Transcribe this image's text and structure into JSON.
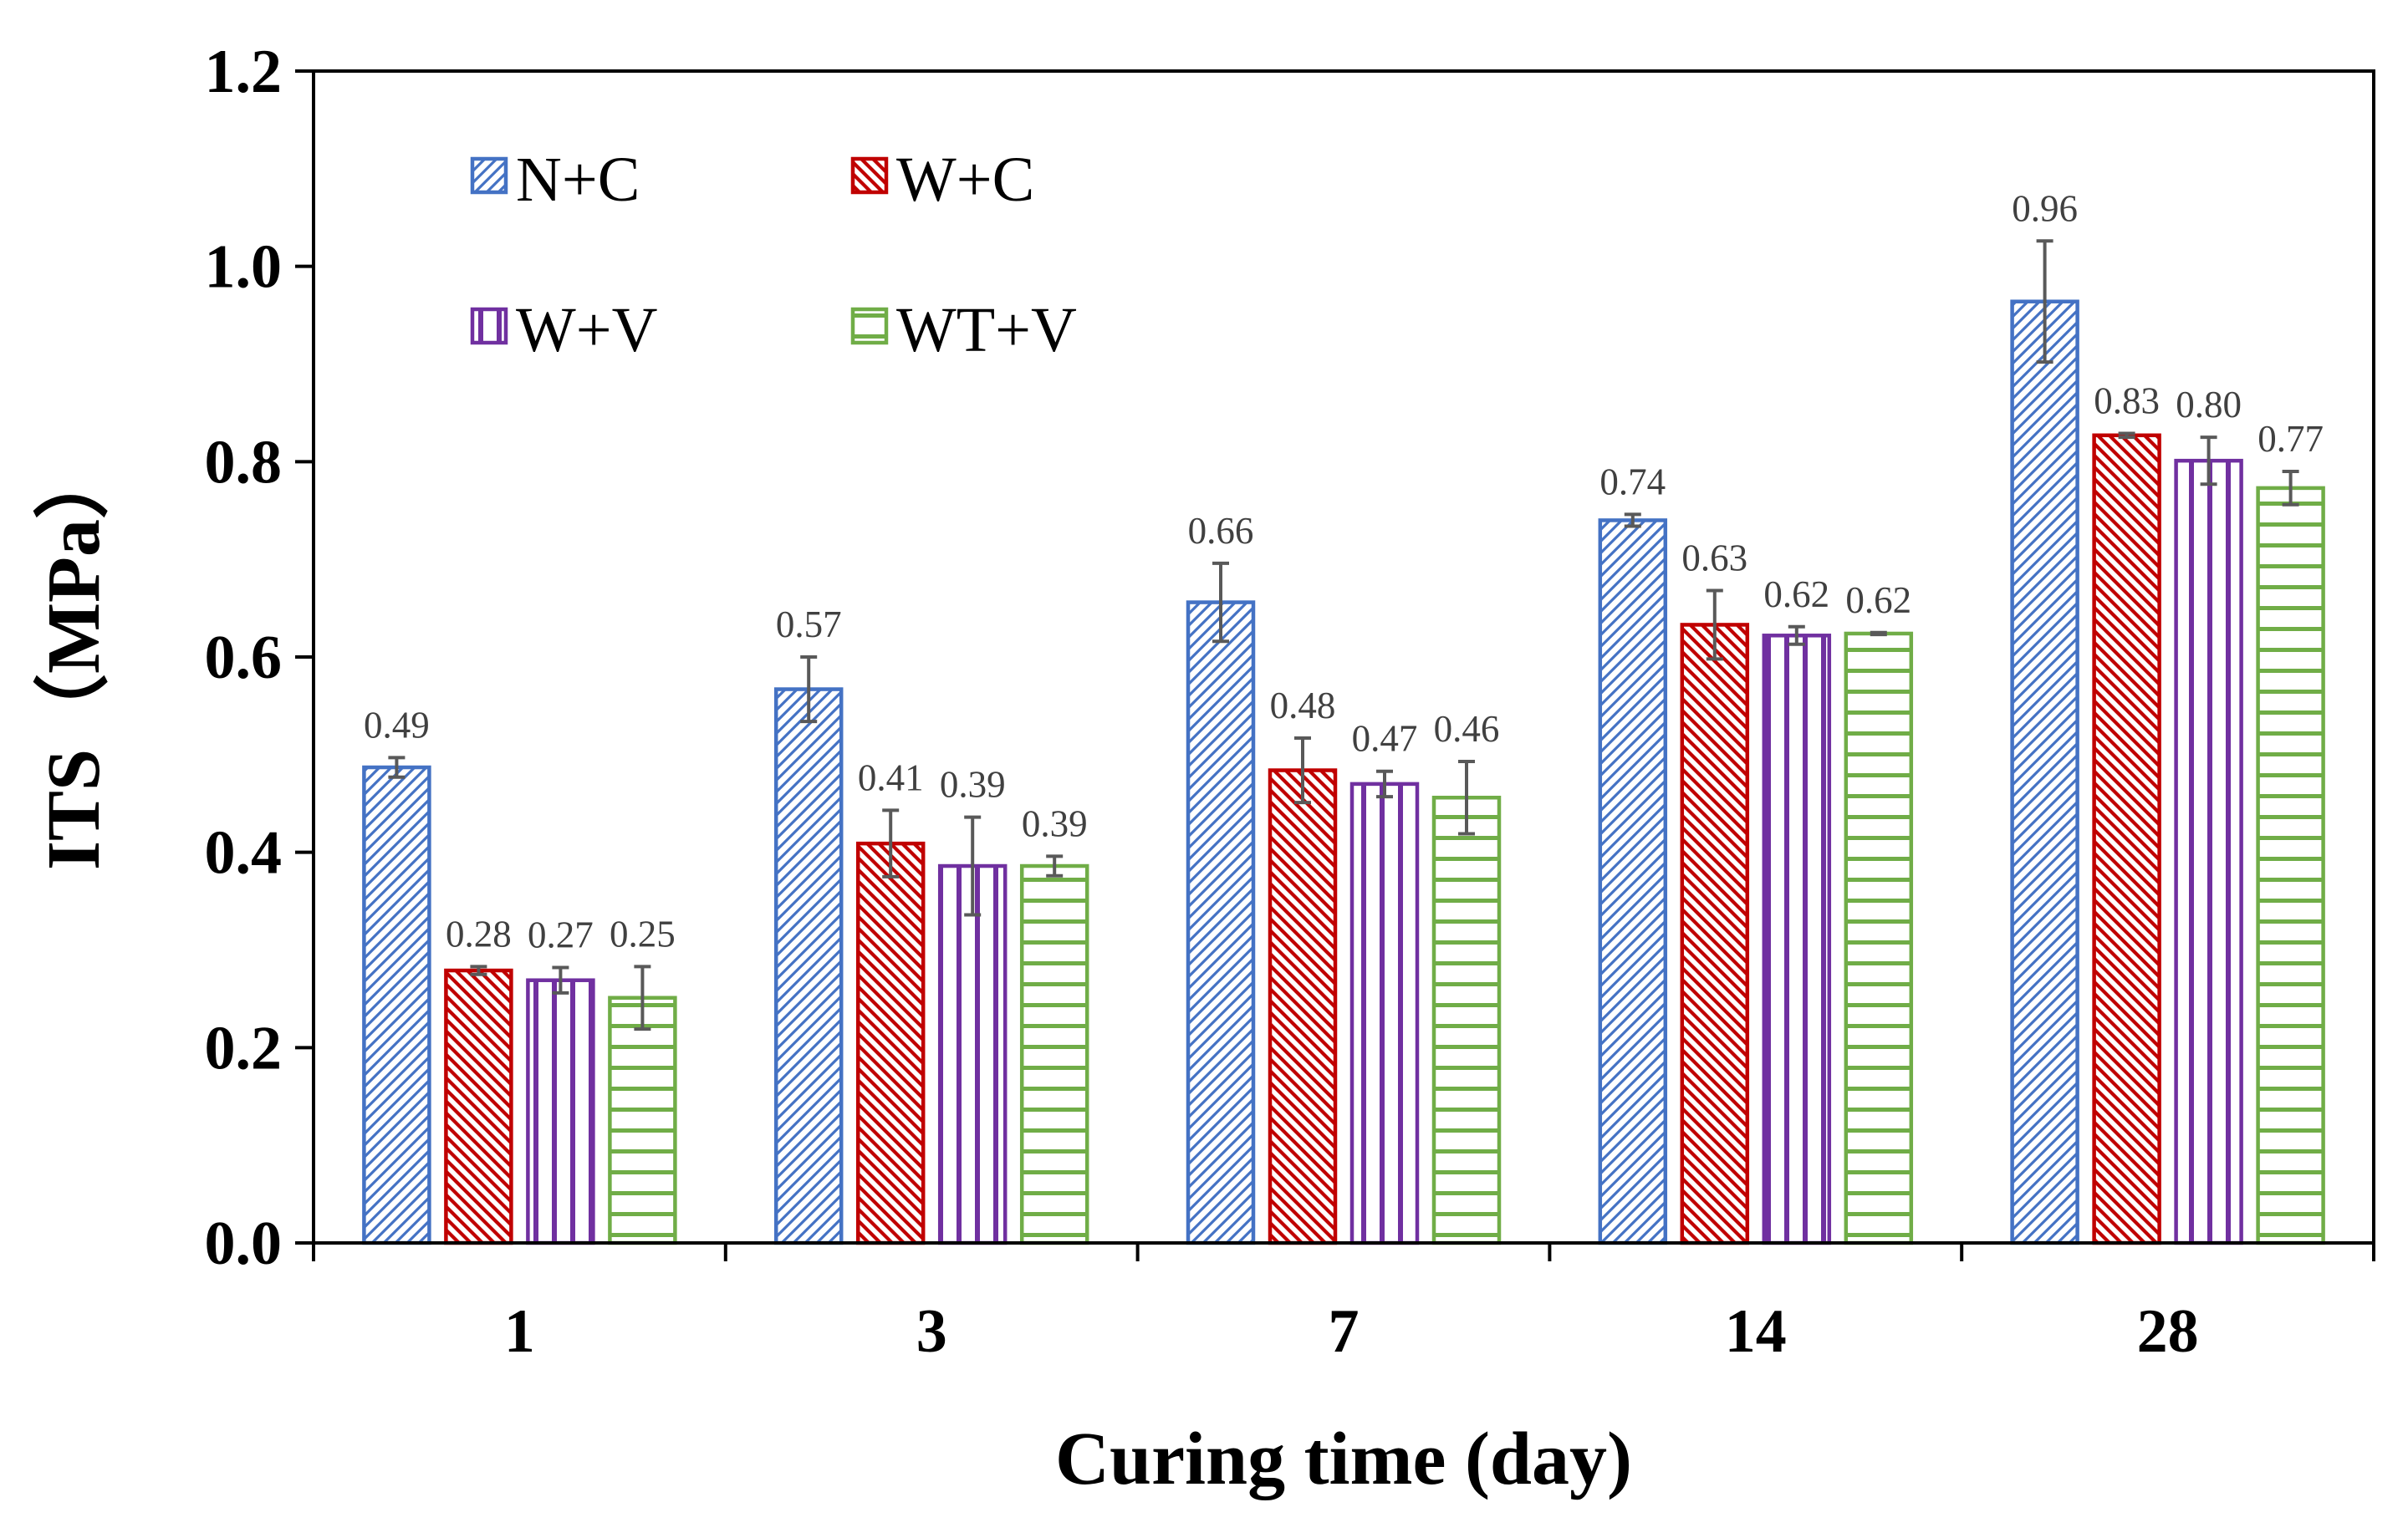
{
  "chart_data": {
    "type": "bar",
    "title": "",
    "xlabel": "Curing time (day)",
    "ylabel": "ITS（MPa）",
    "ylim": [
      0,
      1.2
    ],
    "ytick_step": 0.2,
    "yticks": [
      "0.0",
      "0.2",
      "0.4",
      "0.6",
      "0.8",
      "1.0",
      "1.2"
    ],
    "categories": [
      "1",
      "3",
      "7",
      "14",
      "28"
    ],
    "grid": false,
    "legend_position": "top-left",
    "series": [
      {
        "name": "N+C",
        "color": "#4472C4",
        "pattern": "diagonal-up",
        "values": [
          0.487,
          0.567,
          0.656,
          0.74,
          0.964
        ],
        "errors": [
          0.01,
          0.033,
          0.04,
          0.006,
          0.062
        ],
        "labels": [
          "0.49",
          "0.57",
          "0.66",
          "0.74",
          "0.96"
        ]
      },
      {
        "name": "W+C",
        "color": "#C00000",
        "pattern": "diagonal-down",
        "values": [
          0.279,
          0.409,
          0.484,
          0.633,
          0.827
        ],
        "errors": [
          0.004,
          0.034,
          0.033,
          0.035,
          0.002
        ],
        "labels": [
          "0.28",
          "0.41",
          "0.48",
          "0.63",
          "0.83"
        ]
      },
      {
        "name": "W+V",
        "color": "#7030A0",
        "pattern": "vertical",
        "values": [
          0.269,
          0.386,
          0.47,
          0.622,
          0.801
        ],
        "errors": [
          0.013,
          0.05,
          0.013,
          0.009,
          0.024
        ],
        "labels": [
          "0.27",
          "0.39",
          "0.47",
          "0.62",
          "0.80"
        ]
      },
      {
        "name": "WT+V",
        "color": "#70AD47",
        "pattern": "horizontal",
        "values": [
          0.251,
          0.386,
          0.456,
          0.624,
          0.773
        ],
        "errors": [
          0.032,
          0.01,
          0.037,
          0.001,
          0.017
        ],
        "labels": [
          "0.25",
          "0.39",
          "0.46",
          "0.62",
          "0.77"
        ]
      }
    ]
  }
}
